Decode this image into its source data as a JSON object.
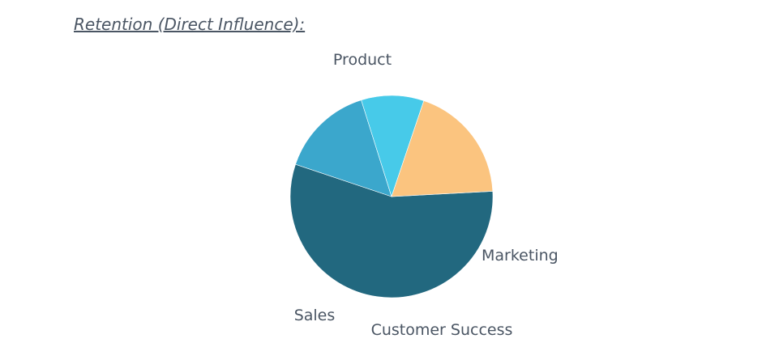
{
  "chart_data": {
    "type": "pie",
    "title": "Retention (Direct Influence):",
    "slices": [
      {
        "label": "Product",
        "value": 56,
        "color": "#22687f"
      },
      {
        "label": "Marketing",
        "value": 15,
        "color": "#3ba7cc"
      },
      {
        "label": "Customer Success",
        "value": 10,
        "color": "#47cae9"
      },
      {
        "label": "Sales",
        "value": 19,
        "color": "#fbc47f"
      }
    ]
  }
}
